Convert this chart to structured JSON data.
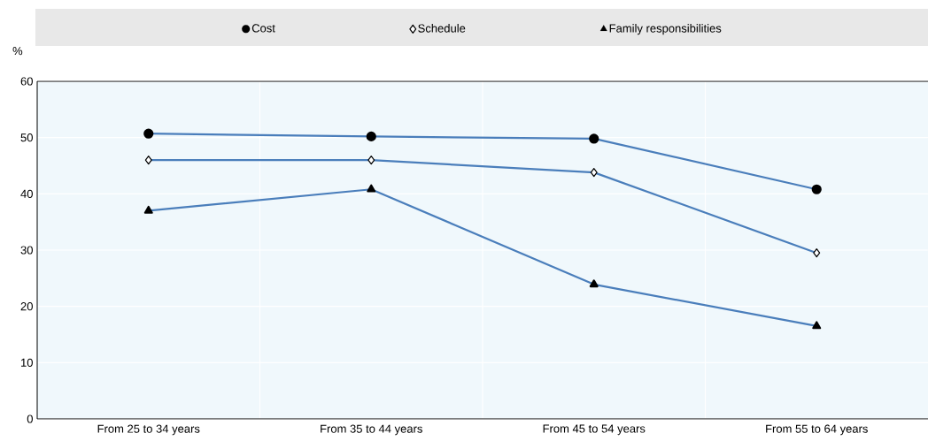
{
  "chart_data": {
    "type": "line",
    "ylabel": "%",
    "categories": [
      "From 25 to 34 years",
      "From 35 to 44 years",
      "From 45 to 54 years",
      "From 55 to 64 years"
    ],
    "series": [
      {
        "name": "Cost",
        "color": "#4a7ebb",
        "marker": "circle",
        "values": [
          50.7,
          50.2,
          49.8,
          40.8
        ]
      },
      {
        "name": "Schedule",
        "color": "#4a7ebb",
        "marker": "diamond",
        "values": [
          46.0,
          46.0,
          43.8,
          29.5
        ]
      },
      {
        "name": "Family responsibilities",
        "color": "#4a7ebb",
        "marker": "triangle",
        "values": [
          37.0,
          40.8,
          23.9,
          16.5
        ]
      }
    ],
    "ylim": [
      0,
      60
    ],
    "yticks": [
      0,
      10,
      20,
      30,
      40,
      50,
      60
    ],
    "grid": true,
    "legend": "top",
    "line_style": "solid"
  }
}
